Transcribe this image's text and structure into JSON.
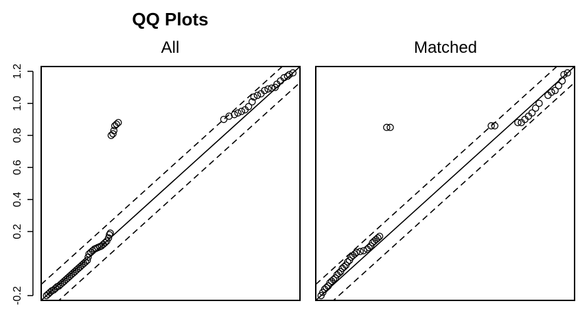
{
  "title": "QQ Plots",
  "chart_data": {
    "type": "scatter",
    "title": "QQ Plots",
    "y_ticks": [
      "-0.2",
      "0.2",
      "0.4",
      "0.6",
      "0.8",
      "1.0",
      "1.2"
    ],
    "ylim": [
      -0.23,
      1.23
    ],
    "xlim": [
      -0.23,
      1.23
    ],
    "reference_lines": {
      "identity_slope": 1,
      "offset": 0.1,
      "solid": "identity",
      "dashed": [
        "identity + 0.1",
        "identity - 0.1"
      ]
    },
    "panels": [
      {
        "title": "All",
        "points": [
          [
            -0.2,
            -0.2
          ],
          [
            -0.19,
            -0.19
          ],
          [
            -0.18,
            -0.18
          ],
          [
            -0.17,
            -0.17
          ],
          [
            -0.16,
            -0.165
          ],
          [
            -0.15,
            -0.155
          ],
          [
            -0.14,
            -0.145
          ],
          [
            -0.13,
            -0.14
          ],
          [
            -0.12,
            -0.13
          ],
          [
            -0.11,
            -0.12
          ],
          [
            -0.1,
            -0.11
          ],
          [
            -0.09,
            -0.1
          ],
          [
            -0.08,
            -0.09
          ],
          [
            -0.07,
            -0.08
          ],
          [
            -0.06,
            -0.07
          ],
          [
            -0.05,
            -0.06
          ],
          [
            -0.04,
            -0.05
          ],
          [
            -0.03,
            -0.04
          ],
          [
            -0.02,
            -0.03
          ],
          [
            -0.01,
            -0.02
          ],
          [
            0.0,
            -0.01
          ],
          [
            0.01,
            0.0
          ],
          [
            0.02,
            0.01
          ],
          [
            0.03,
            0.02
          ],
          [
            0.035,
            0.04
          ],
          [
            0.04,
            0.06
          ],
          [
            0.05,
            0.07
          ],
          [
            0.06,
            0.08
          ],
          [
            0.07,
            0.09
          ],
          [
            0.08,
            0.095
          ],
          [
            0.09,
            0.1
          ],
          [
            0.1,
            0.105
          ],
          [
            0.11,
            0.11
          ],
          [
            0.12,
            0.12
          ],
          [
            0.13,
            0.13
          ],
          [
            0.14,
            0.14
          ],
          [
            0.15,
            0.16
          ],
          [
            0.155,
            0.18
          ],
          [
            0.16,
            0.19
          ],
          [
            0.165,
            0.8
          ],
          [
            0.175,
            0.81
          ],
          [
            0.18,
            0.83
          ],
          [
            0.185,
            0.86
          ],
          [
            0.195,
            0.87
          ],
          [
            0.205,
            0.88
          ],
          [
            0.8,
            0.9
          ],
          [
            0.83,
            0.92
          ],
          [
            0.86,
            0.93
          ],
          [
            0.88,
            0.94
          ],
          [
            0.9,
            0.95
          ],
          [
            0.92,
            0.96
          ],
          [
            0.94,
            0.98
          ],
          [
            0.96,
            1.01
          ],
          [
            0.97,
            1.04
          ],
          [
            0.99,
            1.05
          ],
          [
            1.01,
            1.06
          ],
          [
            1.03,
            1.08
          ],
          [
            1.05,
            1.09
          ],
          [
            1.07,
            1.095
          ],
          [
            1.09,
            1.1
          ],
          [
            1.1,
            1.12
          ],
          [
            1.12,
            1.14
          ],
          [
            1.14,
            1.16
          ],
          [
            1.16,
            1.17
          ],
          [
            1.17,
            1.18
          ],
          [
            1.19,
            1.19
          ]
        ]
      },
      {
        "title": "Matched",
        "points": [
          [
            -0.2,
            -0.2
          ],
          [
            -0.19,
            -0.18
          ],
          [
            -0.18,
            -0.16
          ],
          [
            -0.17,
            -0.15
          ],
          [
            -0.16,
            -0.14
          ],
          [
            -0.15,
            -0.12
          ],
          [
            -0.14,
            -0.11
          ],
          [
            -0.13,
            -0.1
          ],
          [
            -0.12,
            -0.09
          ],
          [
            -0.11,
            -0.07
          ],
          [
            -0.1,
            -0.06
          ],
          [
            -0.09,
            -0.05
          ],
          [
            -0.08,
            -0.03
          ],
          [
            -0.07,
            -0.02
          ],
          [
            -0.06,
            -0.01
          ],
          [
            -0.05,
            0.01
          ],
          [
            -0.04,
            0.02
          ],
          [
            -0.03,
            0.04
          ],
          [
            -0.02,
            0.05
          ],
          [
            -0.01,
            0.06
          ],
          [
            0.0,
            0.07
          ],
          [
            0.02,
            0.075
          ],
          [
            0.04,
            0.08
          ],
          [
            0.06,
            0.09
          ],
          [
            0.07,
            0.1
          ],
          [
            0.08,
            0.11
          ],
          [
            0.09,
            0.13
          ],
          [
            0.1,
            0.14
          ],
          [
            0.11,
            0.15
          ],
          [
            0.12,
            0.16
          ],
          [
            0.13,
            0.17
          ],
          [
            0.17,
            0.85
          ],
          [
            0.19,
            0.85
          ],
          [
            0.76,
            0.86
          ],
          [
            0.78,
            0.86
          ],
          [
            0.91,
            0.88
          ],
          [
            0.93,
            0.88
          ],
          [
            0.95,
            0.9
          ],
          [
            0.97,
            0.92
          ],
          [
            0.99,
            0.94
          ],
          [
            1.01,
            0.97
          ],
          [
            1.03,
            1.0
          ],
          [
            1.08,
            1.05
          ],
          [
            1.1,
            1.07
          ],
          [
            1.12,
            1.08
          ],
          [
            1.14,
            1.11
          ],
          [
            1.16,
            1.14
          ],
          [
            1.17,
            1.18
          ],
          [
            1.19,
            1.19
          ]
        ]
      }
    ]
  }
}
